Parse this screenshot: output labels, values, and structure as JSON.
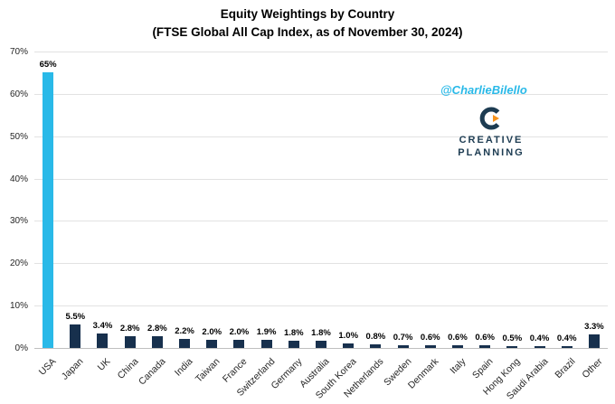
{
  "title": {
    "line1": "Equity Weightings by Country",
    "line2": "(FTSE Global All Cap Index, as of November 30, 2024)"
  },
  "watermark": {
    "text": "@CharlieBilello"
  },
  "logo": {
    "icon": "creative-planning-c-icon",
    "line1": "CREATIVE",
    "line2": "PLANNING"
  },
  "colors": {
    "highlight_bar": "#29b9e8",
    "bar": "#17304d",
    "watermark": "#29b9e8",
    "logo_text": "#1d3c52",
    "logo_accent": "#f7941d",
    "gridline": "#e2e2e2",
    "axis_line": "#bfbfbf"
  },
  "chart_data": {
    "type": "bar",
    "title": "Equity Weightings by Country (FTSE Global All Cap Index, as of November 30, 2024)",
    "categories": [
      "USA",
      "Japan",
      "UK",
      "China",
      "Canada",
      "India",
      "Taiwan",
      "France",
      "Switzerland",
      "Germany",
      "Australia",
      "South Korea",
      "Netherlands",
      "Sweden",
      "Denmark",
      "Italy",
      "Spain",
      "Hong Kong",
      "Saudi Arabia",
      "Brazil",
      "Other"
    ],
    "values": [
      65,
      5.5,
      3.4,
      2.8,
      2.8,
      2.2,
      2.0,
      2.0,
      1.9,
      1.8,
      1.8,
      1.0,
      0.8,
      0.7,
      0.6,
      0.6,
      0.6,
      0.5,
      0.4,
      0.4,
      3.3
    ],
    "value_labels": [
      "65%",
      "5.5%",
      "3.4%",
      "2.8%",
      "2.8%",
      "2.2%",
      "2.0%",
      "2.0%",
      "1.9%",
      "1.8%",
      "1.8%",
      "1.0%",
      "0.8%",
      "0.7%",
      "0.6%",
      "0.6%",
      "0.6%",
      "0.5%",
      "0.4%",
      "0.4%",
      "3.3%"
    ],
    "highlight_index": 0,
    "xlabel": "",
    "ylabel": "",
    "ylim": [
      0,
      70
    ],
    "ytick_step": 10,
    "ytick_labels": [
      "0%",
      "10%",
      "20%",
      "30%",
      "40%",
      "50%",
      "60%",
      "70%"
    ],
    "grid": true,
    "legend": "none"
  }
}
